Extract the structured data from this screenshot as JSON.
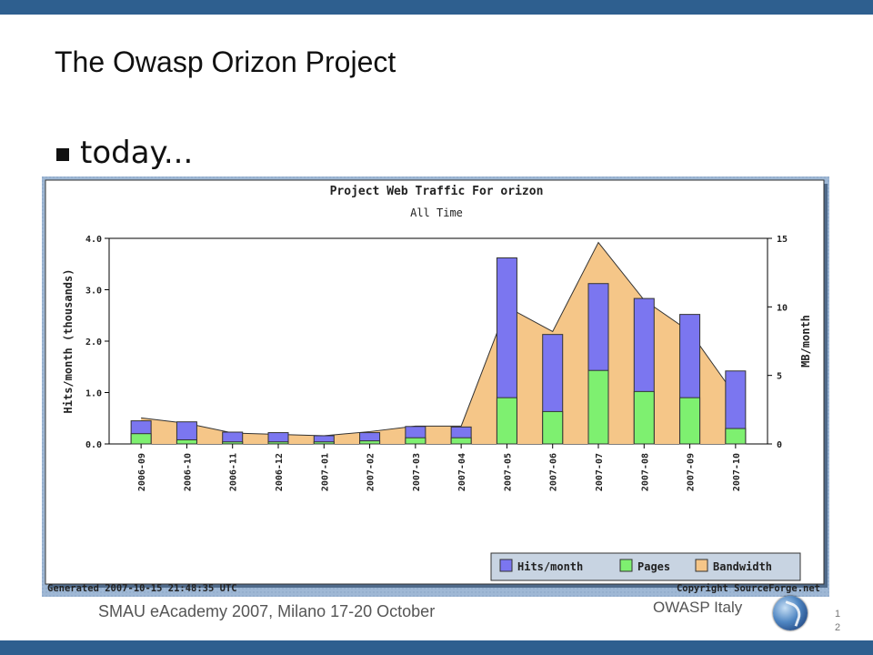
{
  "slide": {
    "title": "The Owasp Orizon Project",
    "bullet": "today...",
    "footer_left": "SMAU eAcademy 2007, Milano 17-20 October",
    "footer_org": "OWASP  Italy",
    "page_number_line1": "1",
    "page_number_line2": "2"
  },
  "colors": {
    "top_bar": "#2e5f8f",
    "panel_bg": "#99b3d1",
    "hits": "#7b76f0",
    "pages": "#7ef070",
    "bandwidth": "#f5c688"
  },
  "chart_data": {
    "type": "bar",
    "title": "Project Web Traffic For orizon",
    "subtitle": "All Time",
    "ylabel": "Hits/month (thousands)",
    "y2label": "MB/month",
    "ylim": [
      0,
      4
    ],
    "y2lim": [
      0,
      15
    ],
    "yticks": [
      "0.0",
      "1.0",
      "2.0",
      "3.0",
      "4.0"
    ],
    "y2ticks": [
      "0",
      "5",
      "10",
      "15"
    ],
    "categories": [
      "2006-09",
      "2006-10",
      "2006-11",
      "2006-12",
      "2007-01",
      "2007-02",
      "2007-03",
      "2007-04",
      "2007-05",
      "2007-06",
      "2007-07",
      "2007-08",
      "2007-09",
      "2007-10"
    ],
    "series": [
      {
        "name": "Hits/month",
        "axis": "left",
        "values": [
          0.45,
          0.43,
          0.23,
          0.22,
          0.16,
          0.22,
          0.34,
          0.33,
          3.62,
          2.13,
          3.12,
          2.83,
          2.52,
          1.42
        ]
      },
      {
        "name": "Pages",
        "axis": "left",
        "values": [
          0.2,
          0.08,
          0.04,
          0.04,
          0.04,
          0.06,
          0.12,
          0.12,
          0.9,
          0.63,
          1.43,
          1.02,
          0.9,
          0.3
        ]
      },
      {
        "name": "Bandwidth",
        "axis": "right",
        "type": "area",
        "values": [
          1.9,
          1.5,
          0.8,
          0.7,
          0.6,
          0.9,
          1.3,
          1.3,
          10.0,
          8.2,
          14.7,
          10.5,
          8.2,
          3.5
        ]
      }
    ],
    "legend": [
      "Hits/month",
      "Pages",
      "Bandwidth"
    ],
    "legend_position": "bottom-right",
    "grid": false,
    "generated": "Generated 2007-10-15 21:48:35 UTC",
    "copyright": "Copyright SourceForge.net"
  }
}
